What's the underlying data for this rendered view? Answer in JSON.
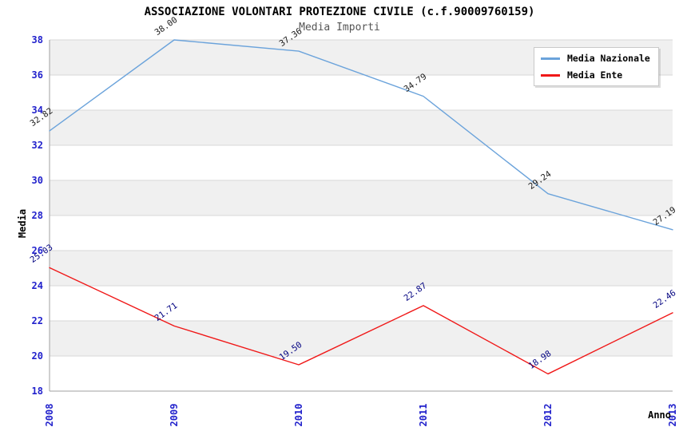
{
  "header": {
    "title": "ASSOCIAZIONE VOLONTARI PROTEZIONE CIVILE (c.f.90009760159)",
    "subtitle": "Media Importi"
  },
  "chart_data": {
    "type": "line",
    "title": "ASSOCIAZIONE VOLONTARI PROTEZIONE CIVILE (c.f.90009760159)",
    "subtitle": "Media Importi",
    "xlabel": "Anno",
    "ylabel": "Media",
    "categories": [
      "2008",
      "2009",
      "2010",
      "2011",
      "2012",
      "2013"
    ],
    "series": [
      {
        "name": "Media Nazionale",
        "color": "#6BA3DB",
        "label_color": "#1a1a1a",
        "values": [
          32.82,
          38.0,
          37.36,
          34.79,
          29.24,
          27.19
        ]
      },
      {
        "name": "Media Ente",
        "color": "#F01818",
        "label_color": "#000080",
        "values": [
          25.03,
          21.71,
          19.5,
          22.87,
          18.98,
          22.46
        ]
      }
    ],
    "ylim": [
      18,
      38
    ],
    "ytick_step": 2,
    "yticks": [
      38,
      36,
      34,
      32,
      30,
      28,
      26,
      24,
      22,
      20,
      18
    ],
    "grid": "horizontal-only",
    "legend_position": "top-right",
    "value_labels_shown": true,
    "colors": {
      "tick_label": "#2222CC",
      "band_gray": "#F0F0F0",
      "band_white": "#FFFFFF",
      "gridline": "#D7D7D7",
      "axis": "#A0A0A0",
      "subtitle_text": "#555555",
      "title_text": "#000000"
    }
  }
}
